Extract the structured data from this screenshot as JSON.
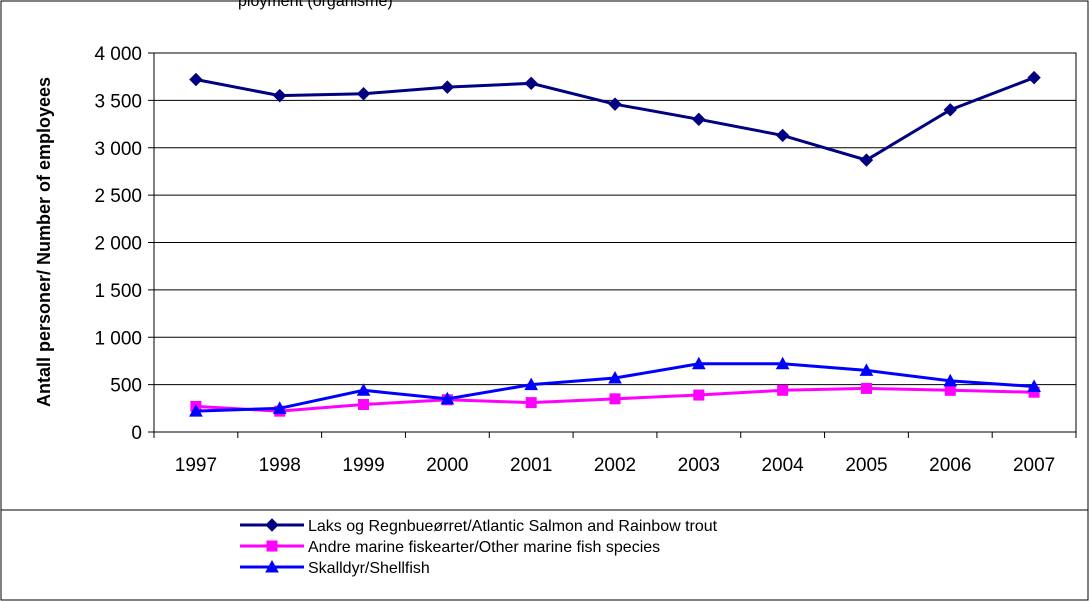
{
  "chart_data": {
    "type": "line",
    "title": "",
    "top_fragment": "ployment (organisme)",
    "xlabel": "",
    "ylabel": "Antall personer/ Number of employees",
    "categories": [
      "1997",
      "1998",
      "1999",
      "2000",
      "2001",
      "2002",
      "2003",
      "2004",
      "2005",
      "2006",
      "2007"
    ],
    "ylim": [
      0,
      4000
    ],
    "yticks": [
      0,
      500,
      1000,
      1500,
      2000,
      2500,
      3000,
      3500,
      4000
    ],
    "ytick_labels": [
      "0",
      "500",
      "1 000",
      "1 500",
      "2 000",
      "2 500",
      "3 000",
      "3 500",
      "4 000"
    ],
    "grid": true,
    "legend_position": "bottom",
    "series": [
      {
        "name": "Laks og Regnbueørret/Atlantic Salmon and Rainbow  trout",
        "color": "#000080",
        "marker": "diamond",
        "values": [
          3720,
          3550,
          3570,
          3640,
          3680,
          3460,
          3300,
          3130,
          2870,
          3400,
          3740
        ]
      },
      {
        "name": "Andre marine fiskearter/Other marine fish species",
        "color": "#FF00FF",
        "marker": "square",
        "values": [
          270,
          220,
          290,
          340,
          310,
          350,
          390,
          440,
          460,
          440,
          420
        ]
      },
      {
        "name": "Skalldyr/Shellfish",
        "color": "#0000FF",
        "marker": "triangle",
        "values": [
          220,
          250,
          440,
          350,
          500,
          570,
          720,
          720,
          650,
          540,
          480
        ]
      }
    ]
  }
}
